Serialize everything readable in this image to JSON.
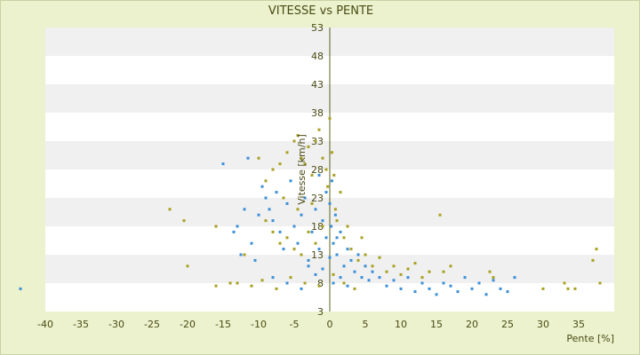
{
  "chart_data": {
    "type": "scatter",
    "title": "VITESSE vs PENTE",
    "xlabel": "Pente [%]",
    "ylabel": "Vitesse [km/h]",
    "xlim": [
      -40,
      40
    ],
    "ylim": [
      3,
      53
    ],
    "x_ticks": [
      -40,
      -35,
      -30,
      -25,
      -20,
      -15,
      -10,
      -5,
      0,
      5,
      10,
      15,
      20,
      25,
      30,
      35
    ],
    "y_ticks": [
      3,
      8,
      13,
      18,
      23,
      28,
      33,
      38,
      43,
      48,
      53
    ],
    "grid": true,
    "legend": "none",
    "colors": {
      "background": "#ebf2cd",
      "plot_band_light": "#ffffff",
      "plot_band_dark": "#f0f0f0",
      "series_1": "#3a8fd8",
      "series_2": "#a8a020",
      "zero_line": "#5a6418",
      "text": "#4a4a14"
    },
    "series": [
      {
        "color": "#3a8fd8",
        "points": [
          [
            -43.5,
            7.0
          ],
          [
            -15.0,
            29.0
          ],
          [
            -13.5,
            17.0
          ],
          [
            -13.0,
            18.0
          ],
          [
            -12.0,
            21.0
          ],
          [
            -12.5,
            13.0
          ],
          [
            -11.5,
            30.0
          ],
          [
            -11.0,
            15.0
          ],
          [
            -10.5,
            12.0
          ],
          [
            -10.0,
            20.0
          ],
          [
            -9.5,
            25.0
          ],
          [
            -9.0,
            23.0
          ],
          [
            -8.5,
            21.0
          ],
          [
            -8.0,
            19.0
          ],
          [
            -7.5,
            24.0
          ],
          [
            -7.0,
            17.0
          ],
          [
            -6.5,
            14.0
          ],
          [
            -6.0,
            22.0
          ],
          [
            -5.5,
            26.0
          ],
          [
            -5.0,
            18.0
          ],
          [
            -4.5,
            15.0
          ],
          [
            -4.0,
            20.0
          ],
          [
            -3.5,
            23.0
          ],
          [
            -3.0,
            12.0
          ],
          [
            -2.5,
            17.0
          ],
          [
            -2.0,
            21.0
          ],
          [
            -1.5,
            14.0
          ],
          [
            -1.0,
            19.0
          ],
          [
            -0.5,
            16.0
          ],
          [
            0.0,
            22.0
          ],
          [
            0.2,
            18.0
          ],
          [
            0.5,
            15.0
          ],
          [
            0.8,
            20.0
          ],
          [
            1.0,
            13.0
          ],
          [
            1.5,
            17.0
          ],
          [
            2.0,
            11.0
          ],
          [
            2.5,
            14.0
          ],
          [
            3.0,
            12.0
          ],
          [
            3.5,
            10.0
          ],
          [
            4.0,
            13.0
          ],
          [
            4.5,
            9.0
          ],
          [
            5.0,
            11.0
          ],
          [
            5.5,
            8.5
          ],
          [
            6.0,
            10.0
          ],
          [
            7.0,
            9.0
          ],
          [
            8.0,
            7.5
          ],
          [
            9.0,
            8.5
          ],
          [
            10.0,
            7.0
          ],
          [
            11.0,
            9.0
          ],
          [
            12.0,
            6.5
          ],
          [
            13.0,
            8.0
          ],
          [
            14.0,
            7.0
          ],
          [
            15.0,
            6.0
          ],
          [
            16.0,
            8.0
          ],
          [
            17.0,
            7.5
          ],
          [
            18.0,
            6.5
          ],
          [
            19.0,
            9.0
          ],
          [
            20.0,
            7.0
          ],
          [
            21.0,
            8.0
          ],
          [
            22.0,
            6.0
          ],
          [
            23.0,
            8.5
          ],
          [
            24.0,
            7.0
          ],
          [
            25.0,
            6.5
          ],
          [
            26.0,
            9.0
          ],
          [
            -8.0,
            9.0
          ],
          [
            -6.0,
            8.0
          ],
          [
            -4.0,
            7.0
          ],
          [
            -2.0,
            9.5
          ],
          [
            0.5,
            8.0
          ],
          [
            1.5,
            9.0
          ],
          [
            2.5,
            7.5
          ],
          [
            -1.0,
            10.5
          ],
          [
            -3.0,
            11.0
          ],
          [
            0.0,
            12.5
          ],
          [
            1.0,
            16.0
          ],
          [
            -0.5,
            24.0
          ],
          [
            0.3,
            26.0
          ],
          [
            -1.5,
            27.0
          ]
        ]
      },
      {
        "color": "#a8a020",
        "points": [
          [
            -22.5,
            21.0
          ],
          [
            -20.5,
            19.0
          ],
          [
            -20.0,
            11.0
          ],
          [
            -16.0,
            18.0
          ],
          [
            -16.0,
            7.5
          ],
          [
            -13.0,
            8.0
          ],
          [
            -10.0,
            30.0
          ],
          [
            -9.0,
            26.0
          ],
          [
            -8.0,
            28.0
          ],
          [
            -7.0,
            29.0
          ],
          [
            -6.0,
            31.0
          ],
          [
            -5.0,
            33.0
          ],
          [
            -4.5,
            34.0
          ],
          [
            -4.0,
            30.0
          ],
          [
            -3.5,
            29.0
          ],
          [
            -3.0,
            32.0
          ],
          [
            -2.5,
            27.0
          ],
          [
            -2.0,
            33.0
          ],
          [
            -1.5,
            35.0
          ],
          [
            -1.0,
            30.0
          ],
          [
            -0.5,
            28.0
          ],
          [
            0.0,
            37.0
          ],
          [
            0.3,
            31.0
          ],
          [
            0.6,
            27.0
          ],
          [
            -9.0,
            19.0
          ],
          [
            -8.0,
            17.0
          ],
          [
            -7.0,
            15.0
          ],
          [
            -6.0,
            16.0
          ],
          [
            -5.0,
            14.0
          ],
          [
            -4.0,
            13.0
          ],
          [
            -3.0,
            17.0
          ],
          [
            -2.0,
            15.0
          ],
          [
            -1.0,
            18.0
          ],
          [
            1.0,
            19.0
          ],
          [
            2.0,
            16.0
          ],
          [
            3.0,
            14.0
          ],
          [
            4.0,
            12.0
          ],
          [
            5.0,
            13.0
          ],
          [
            6.0,
            11.0
          ],
          [
            7.0,
            12.5
          ],
          [
            8.0,
            10.0
          ],
          [
            9.0,
            11.0
          ],
          [
            10.0,
            9.5
          ],
          [
            11.0,
            10.5
          ],
          [
            12.0,
            11.5
          ],
          [
            13.0,
            9.0
          ],
          [
            14.0,
            10.0
          ],
          [
            15.5,
            20.0
          ],
          [
            16.0,
            10.0
          ],
          [
            17.0,
            11.0
          ],
          [
            22.5,
            10.0
          ],
          [
            23.0,
            9.0
          ],
          [
            30.0,
            7.0
          ],
          [
            33.0,
            8.0
          ],
          [
            33.5,
            7.0
          ],
          [
            34.5,
            7.0
          ],
          [
            37.0,
            12.0
          ],
          [
            37.5,
            14.0
          ],
          [
            38.0,
            8.0
          ],
          [
            -14.0,
            8.0
          ],
          [
            -11.0,
            7.5
          ],
          [
            -9.5,
            8.5
          ],
          [
            -7.5,
            7.0
          ],
          [
            -5.5,
            9.0
          ],
          [
            -3.5,
            8.0
          ],
          [
            -1.5,
            7.5
          ],
          [
            0.5,
            9.5
          ],
          [
            2.0,
            8.0
          ],
          [
            3.5,
            7.0
          ],
          [
            -6.5,
            23.0
          ],
          [
            -4.5,
            21.0
          ],
          [
            -2.5,
            22.0
          ],
          [
            1.5,
            24.0
          ],
          [
            0.8,
            21.0
          ],
          [
            -0.3,
            25.0
          ],
          [
            2.5,
            18.0
          ],
          [
            4.5,
            16.0
          ],
          [
            -12.0,
            13.0
          ]
        ]
      }
    ]
  }
}
